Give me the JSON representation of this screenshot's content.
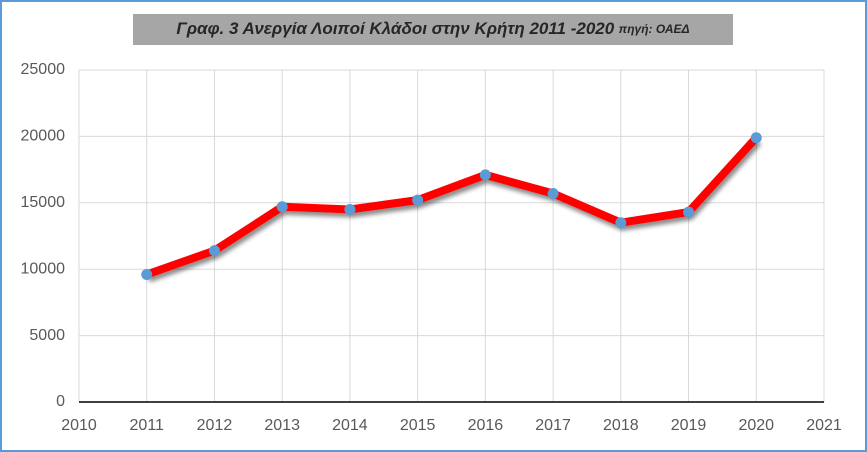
{
  "chart_data": {
    "type": "line",
    "title": "Γραφ. 3 Ανεργία Λοιποί Κλάδοι στην Κρήτη 2011 -2020",
    "source": "πηγή: ΟΑΕΔ",
    "x": [
      2011,
      2012,
      2013,
      2014,
      2015,
      2016,
      2017,
      2018,
      2019,
      2020
    ],
    "values": [
      9600,
      11400,
      14700,
      14500,
      15200,
      17100,
      15700,
      13500,
      14300,
      19900
    ],
    "color": "#ff0000",
    "marker_color": "#5b9bd5",
    "xlim": [
      2010,
      2021
    ],
    "xticks": [
      2010,
      2011,
      2012,
      2013,
      2014,
      2015,
      2016,
      2017,
      2018,
      2019,
      2020,
      2021
    ],
    "ylim": [
      0,
      25000
    ],
    "yticks": [
      0,
      5000,
      10000,
      15000,
      20000,
      25000
    ],
    "grid": true
  }
}
